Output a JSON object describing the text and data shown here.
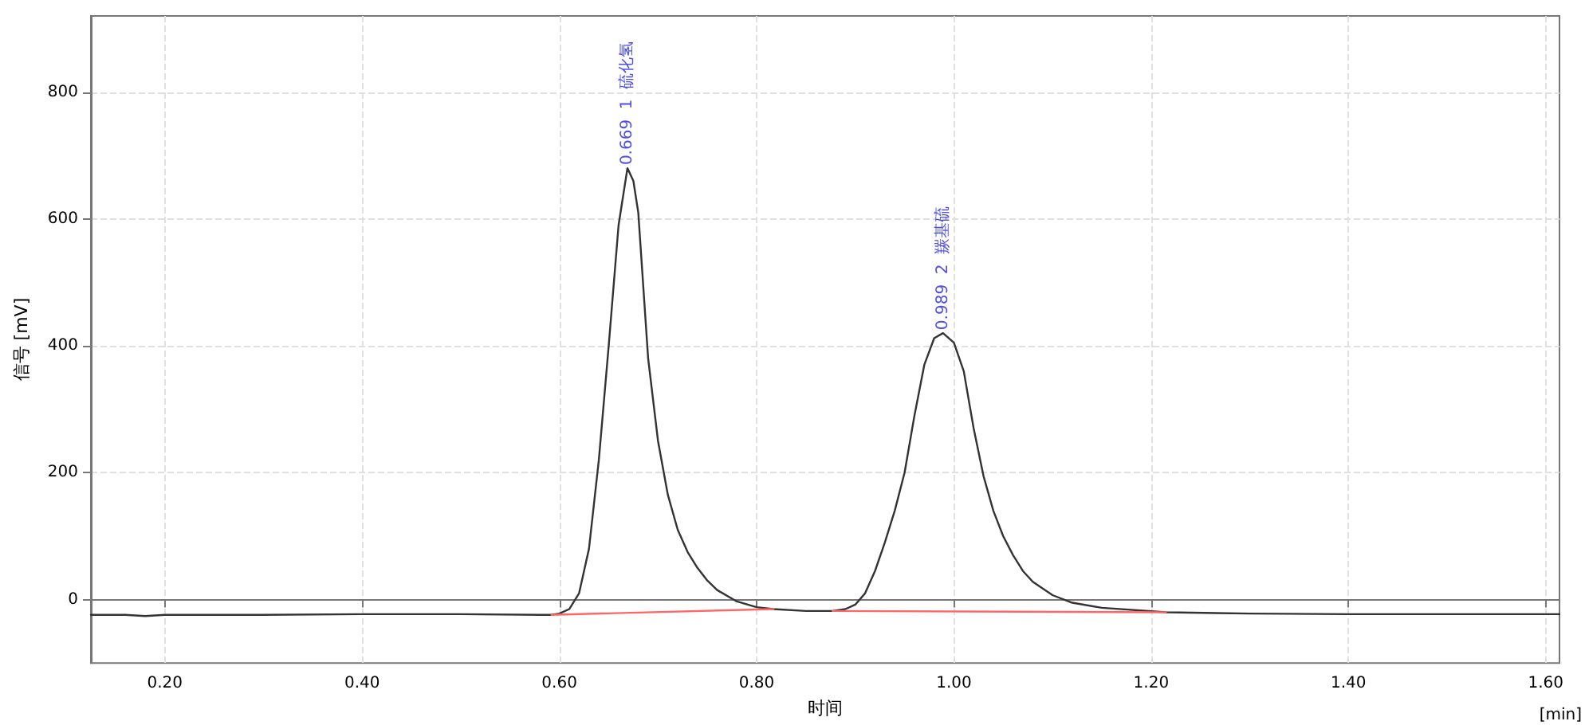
{
  "chart_data": {
    "type": "line",
    "xlabel": "时间",
    "ylabel": "信号 [mV]",
    "xlim": [
      0.125,
      1.614
    ],
    "ylim": [
      -100,
      920
    ],
    "xticks": [
      {
        "value": 0.2,
        "label": "0.20"
      },
      {
        "value": 0.4,
        "label": "0.40"
      },
      {
        "value": 0.6,
        "label": "0.60"
      },
      {
        "value": 0.8,
        "label": "0.80"
      },
      {
        "value": 1.0,
        "label": "1.00"
      },
      {
        "value": 1.2,
        "label": "1.20"
      },
      {
        "value": 1.4,
        "label": "1.40"
      },
      {
        "value": 1.6,
        "label": "1.60"
      }
    ],
    "yticks": [
      0,
      200,
      400,
      600,
      800
    ],
    "grid": true,
    "marker": "none",
    "line_style": "solid",
    "series": [
      {
        "color": "#333333",
        "x": [
          0.125,
          0.16,
          0.18,
          0.2,
          0.3,
          0.4,
          0.5,
          0.58,
          0.592,
          0.6,
          0.61,
          0.62,
          0.63,
          0.64,
          0.65,
          0.66,
          0.669,
          0.675,
          0.68,
          0.69,
          0.7,
          0.71,
          0.72,
          0.73,
          0.74,
          0.75,
          0.76,
          0.78,
          0.8,
          0.817,
          0.85,
          0.877,
          0.89,
          0.9,
          0.91,
          0.92,
          0.93,
          0.94,
          0.95,
          0.96,
          0.97,
          0.98,
          0.989,
          1.0,
          1.01,
          1.02,
          1.03,
          1.04,
          1.05,
          1.06,
          1.07,
          1.08,
          1.1,
          1.12,
          1.15,
          1.215,
          1.3,
          1.4,
          1.5,
          1.614
        ],
        "values": [
          -24,
          -24,
          -26,
          -24,
          -24,
          -23,
          -23,
          -24,
          -24,
          -22,
          -15,
          10,
          80,
          220,
          400,
          590,
          680,
          660,
          610,
          380,
          250,
          165,
          110,
          75,
          50,
          30,
          15,
          -3,
          -12,
          -15,
          -18,
          -18,
          -15,
          -8,
          10,
          45,
          90,
          140,
          200,
          290,
          370,
          412,
          420,
          405,
          360,
          270,
          195,
          140,
          100,
          70,
          45,
          28,
          7,
          -5,
          -13,
          -20,
          -22,
          -23,
          -23,
          -23
        ]
      },
      {
        "color": "#ff6666",
        "x": [
          0.592,
          0.817
        ],
        "values": [
          -24,
          -15
        ]
      },
      {
        "color": "#ff6666",
        "x": [
          0.877,
          1.215
        ],
        "values": [
          -18,
          -20
        ]
      }
    ],
    "annotations": [
      {
        "text": "0.669  1  硫化氢",
        "x": 0.669,
        "y": 680
      },
      {
        "text": "0.989  2  羰基硫",
        "x": 0.989,
        "y": 420
      },
      "[min]"
    ]
  }
}
